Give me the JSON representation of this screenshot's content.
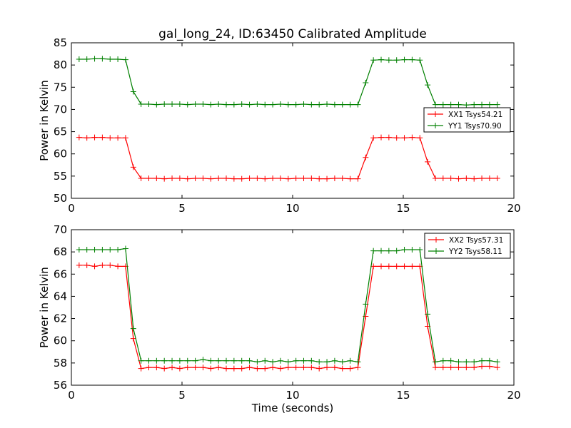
{
  "title": "gal_long_24, ID:63450 Calibrated Amplitude",
  "colors": {
    "red": "#ff0000",
    "green": "#008000"
  },
  "chart_data": [
    {
      "type": "line",
      "xlabel": "",
      "ylabel": "Power in Kelvin",
      "xlim": [
        0,
        20
      ],
      "ylim": [
        50,
        85
      ],
      "xticks": [
        0,
        5,
        10,
        15,
        20
      ],
      "yticks": [
        50,
        55,
        60,
        65,
        70,
        75,
        80,
        85
      ],
      "legend_position": "center-right",
      "x": [
        0.35,
        0.7,
        1.05,
        1.4,
        1.75,
        2.1,
        2.45,
        2.8,
        3.15,
        3.5,
        3.85,
        4.2,
        4.55,
        4.9,
        5.25,
        5.6,
        5.95,
        6.3,
        6.65,
        7.0,
        7.35,
        7.7,
        8.05,
        8.4,
        8.75,
        9.1,
        9.45,
        9.8,
        10.15,
        10.5,
        10.85,
        11.2,
        11.55,
        11.9,
        12.25,
        12.6,
        12.95,
        13.3,
        13.65,
        14.0,
        14.35,
        14.7,
        15.05,
        15.4,
        15.75,
        16.1,
        16.45,
        16.8,
        17.15,
        17.5,
        17.85,
        18.2,
        18.55,
        18.9,
        19.25
      ],
      "series": [
        {
          "name": "XX1 Tsys54.21",
          "color": "#ff0000",
          "values": [
            63.7,
            63.6,
            63.7,
            63.7,
            63.6,
            63.6,
            63.6,
            57.0,
            54.5,
            54.5,
            54.5,
            54.4,
            54.5,
            54.5,
            54.4,
            54.5,
            54.5,
            54.4,
            54.5,
            54.5,
            54.4,
            54.4,
            54.5,
            54.5,
            54.4,
            54.5,
            54.5,
            54.4,
            54.5,
            54.5,
            54.5,
            54.4,
            54.4,
            54.5,
            54.5,
            54.4,
            54.4,
            59.2,
            63.6,
            63.7,
            63.7,
            63.6,
            63.6,
            63.7,
            63.6,
            58.2,
            54.5,
            54.5,
            54.5,
            54.4,
            54.5,
            54.4,
            54.5,
            54.5,
            54.5
          ]
        },
        {
          "name": "YY1 Tsys70.90",
          "color": "#008000",
          "values": [
            81.3,
            81.3,
            81.4,
            81.4,
            81.3,
            81.3,
            81.2,
            74.0,
            71.2,
            71.2,
            71.1,
            71.2,
            71.2,
            71.2,
            71.1,
            71.2,
            71.2,
            71.1,
            71.2,
            71.1,
            71.1,
            71.2,
            71.1,
            71.2,
            71.1,
            71.1,
            71.2,
            71.1,
            71.1,
            71.2,
            71.1,
            71.1,
            71.2,
            71.1,
            71.1,
            71.1,
            71.1,
            76.0,
            81.1,
            81.2,
            81.1,
            81.1,
            81.2,
            81.2,
            81.1,
            75.5,
            71.1,
            71.1,
            71.1,
            71.1,
            71.0,
            71.1,
            71.1,
            71.1,
            71.1
          ]
        }
      ]
    },
    {
      "type": "line",
      "xlabel": "Time (seconds)",
      "ylabel": "Power in Kelvin",
      "xlim": [
        0,
        20
      ],
      "ylim": [
        56,
        70
      ],
      "xticks": [
        0,
        5,
        10,
        15,
        20
      ],
      "yticks": [
        56,
        58,
        60,
        62,
        64,
        66,
        68,
        70
      ],
      "legend_position": "top-right",
      "x": [
        0.35,
        0.7,
        1.05,
        1.4,
        1.75,
        2.1,
        2.45,
        2.8,
        3.15,
        3.5,
        3.85,
        4.2,
        4.55,
        4.9,
        5.25,
        5.6,
        5.95,
        6.3,
        6.65,
        7.0,
        7.35,
        7.7,
        8.05,
        8.4,
        8.75,
        9.1,
        9.45,
        9.8,
        10.15,
        10.5,
        10.85,
        11.2,
        11.55,
        11.9,
        12.25,
        12.6,
        12.95,
        13.3,
        13.65,
        14.0,
        14.35,
        14.7,
        15.05,
        15.4,
        15.75,
        16.1,
        16.45,
        16.8,
        17.15,
        17.5,
        17.85,
        18.2,
        18.55,
        18.9,
        19.25
      ],
      "series": [
        {
          "name": "XX2 Tsys57.31",
          "color": "#ff0000",
          "values": [
            66.8,
            66.8,
            66.7,
            66.8,
            66.8,
            66.7,
            66.7,
            60.2,
            57.5,
            57.6,
            57.6,
            57.5,
            57.6,
            57.5,
            57.6,
            57.6,
            57.6,
            57.5,
            57.6,
            57.5,
            57.5,
            57.5,
            57.6,
            57.5,
            57.5,
            57.6,
            57.5,
            57.6,
            57.6,
            57.6,
            57.6,
            57.5,
            57.6,
            57.6,
            57.5,
            57.5,
            57.6,
            62.2,
            66.7,
            66.7,
            66.7,
            66.7,
            66.7,
            66.7,
            66.7,
            61.3,
            57.6,
            57.6,
            57.6,
            57.6,
            57.6,
            57.6,
            57.7,
            57.7,
            57.6
          ]
        },
        {
          "name": "YY2 Tsys58.11",
          "color": "#008000",
          "values": [
            68.2,
            68.2,
            68.2,
            68.2,
            68.2,
            68.2,
            68.3,
            61.1,
            58.2,
            58.2,
            58.2,
            58.2,
            58.2,
            58.2,
            58.2,
            58.2,
            58.3,
            58.2,
            58.2,
            58.2,
            58.2,
            58.2,
            58.2,
            58.1,
            58.2,
            58.1,
            58.2,
            58.1,
            58.2,
            58.2,
            58.2,
            58.1,
            58.1,
            58.2,
            58.1,
            58.2,
            58.1,
            63.3,
            68.1,
            68.1,
            68.1,
            68.1,
            68.2,
            68.2,
            68.2,
            62.4,
            58.1,
            58.2,
            58.2,
            58.1,
            58.1,
            58.1,
            58.2,
            58.2,
            58.1
          ]
        }
      ]
    }
  ]
}
